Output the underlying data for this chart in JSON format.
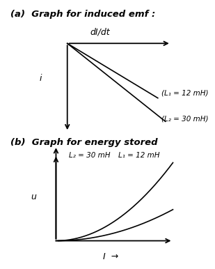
{
  "title_a": "(a)  Graph for induced emf :",
  "title_b": "(b)  Graph for energy stored",
  "label_L1": "L₁ = 12 mH",
  "label_L2": "L₂ = 30 mH",
  "label_L1_paren": "(L₁ = 12 mH)",
  "label_L2_paren": "(L₂ = 30 mH)",
  "axis_label_x_a": "dI/dt",
  "axis_label_y_a": "i",
  "axis_label_x_b": "I",
  "axis_label_y_b": "u",
  "bg_color": "#ffffff",
  "line_color": "#000000",
  "title_fontsize": 9.5,
  "label_fontsize": 8
}
